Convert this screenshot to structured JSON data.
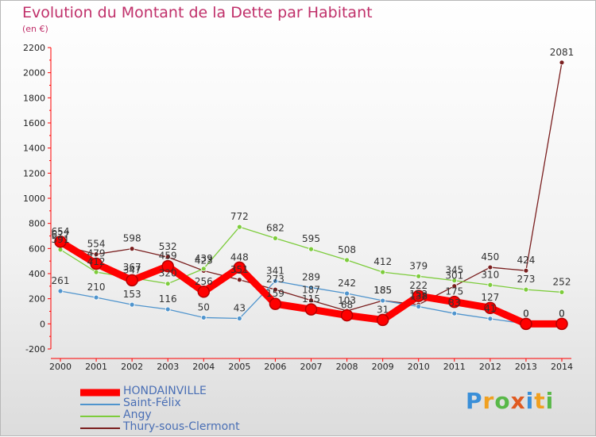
{
  "chart_data": {
    "type": "line",
    "title": "Evolution du Montant de la Dette par Habitant",
    "subtitle": "(en €)",
    "x": [
      "2000",
      "2001",
      "2002",
      "2003",
      "2004",
      "2005",
      "2006",
      "2007",
      "2008",
      "2009",
      "2010",
      "2011",
      "2012",
      "2013",
      "2014"
    ],
    "ylim": [
      -200,
      2200
    ],
    "yticks": [
      -200,
      0,
      200,
      400,
      600,
      800,
      1000,
      1200,
      1400,
      1600,
      1800,
      2000,
      2200
    ],
    "grid": false,
    "legend_position": "bottom-left",
    "series": [
      {
        "name": "HONDAINVILLE",
        "color": "#ff0000",
        "values": [
          654,
          479,
          347,
          459,
          256,
          448,
          159,
          115,
          68,
          31,
          222,
          175,
          127,
          0,
          0
        ],
        "labels": [
          "654",
          "479",
          "347",
          "459",
          "256",
          "448",
          "159",
          "115",
          "68",
          "31",
          "222",
          "175",
          "127",
          "0",
          "0"
        ]
      },
      {
        "name": "Saint-Félix",
        "color": "#4f94cd",
        "values": [
          261,
          210,
          153,
          116,
          50,
          43,
          341,
          289,
          242,
          185,
          138,
          83,
          41,
          0,
          0
        ],
        "labels": [
          "261",
          "210",
          "153",
          "116",
          "50",
          "43",
          "341",
          "289",
          "242",
          "185",
          "138",
          "83",
          "41",
          "0",
          "0"
        ]
      },
      {
        "name": "Angy",
        "color": "#7dcc3c",
        "values": [
          591,
          412,
          367,
          320,
          439,
          772,
          682,
          595,
          508,
          412,
          379,
          345,
          310,
          273,
          252
        ],
        "labels": [
          "591",
          "412",
          "367",
          "320",
          "439",
          "772",
          "682",
          "595",
          "508",
          "412",
          "379",
          "345",
          "310",
          "273",
          "252"
        ]
      },
      {
        "name": "Thury-sous-Clermont",
        "color": "#7a1f1f",
        "values": [
          627,
          554,
          598,
          532,
          423,
          351,
          273,
          187,
          103,
          185,
          153,
          301,
          450,
          424,
          2081
        ],
        "labels": [
          "627",
          "554",
          "598",
          "532",
          "423",
          "351",
          "273",
          "187",
          "103",
          "185",
          "153",
          "301",
          "450",
          "424",
          "2081"
        ]
      }
    ]
  },
  "logo_text": "Proxiti"
}
